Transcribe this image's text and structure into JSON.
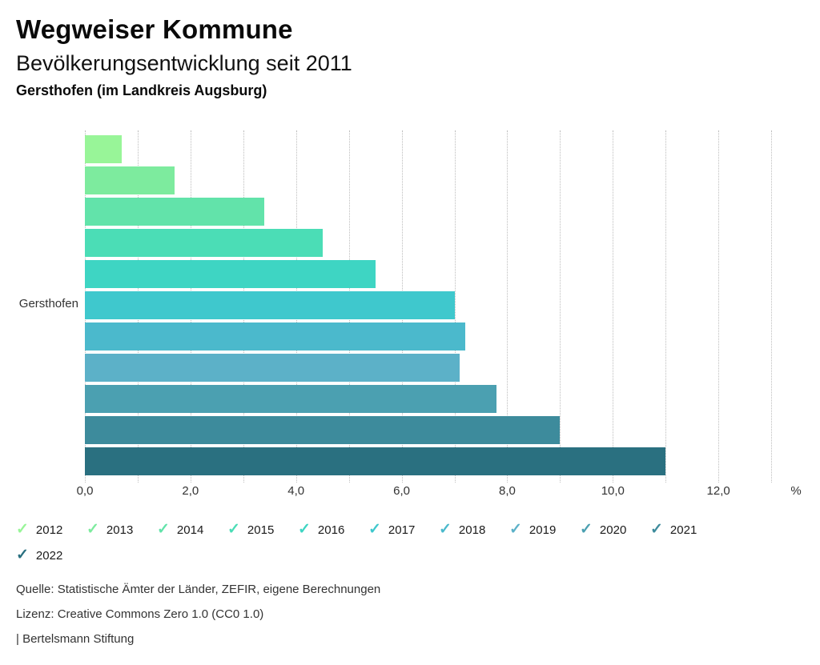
{
  "header": {
    "title": "Wegweiser Kommune",
    "subtitle": "Bevölkerungsentwicklung seit 2011",
    "region": "Gersthofen (im Landkreis Augsburg)"
  },
  "chart_data": {
    "type": "bar",
    "orientation": "horizontal",
    "title": "Bevölkerungsentwicklung seit 2011",
    "category_label": "Gersthofen",
    "unit_label": "%",
    "xlim": [
      0,
      13
    ],
    "grid": "dotted-vertical-every-1",
    "legend_position": "bottom",
    "x_ticks": [
      {
        "label": "0,0",
        "value": 0
      },
      {
        "label": "2,0",
        "value": 2
      },
      {
        "label": "4,0",
        "value": 4
      },
      {
        "label": "6,0",
        "value": 6
      },
      {
        "label": "8,0",
        "value": 8
      },
      {
        "label": "10,0",
        "value": 10
      },
      {
        "label": "12,0",
        "value": 12
      }
    ],
    "series": [
      {
        "name": "2012",
        "value": 0.7,
        "color": "#98F598"
      },
      {
        "name": "2013",
        "value": 1.7,
        "color": "#7DEB9E"
      },
      {
        "name": "2014",
        "value": 3.4,
        "color": "#62E3AA"
      },
      {
        "name": "2015",
        "value": 4.5,
        "color": "#4BDDB6"
      },
      {
        "name": "2016",
        "value": 5.5,
        "color": "#3ED5C3"
      },
      {
        "name": "2017",
        "value": 7.0,
        "color": "#3FC8CD"
      },
      {
        "name": "2018",
        "value": 7.2,
        "color": "#4BB9CC"
      },
      {
        "name": "2019",
        "value": 7.1,
        "color": "#5CB1C8"
      },
      {
        "name": "2020",
        "value": 7.8,
        "color": "#4BA0B1"
      },
      {
        "name": "2021",
        "value": 9.0,
        "color": "#3D8B9C"
      },
      {
        "name": "2022",
        "value": 11.0,
        "color": "#2A7080"
      }
    ]
  },
  "legend": {
    "check_icon": "✓"
  },
  "footer": {
    "source": "Quelle: Statistische Ämter der Länder, ZEFIR, eigene Berechnungen",
    "license": "Lizenz: Creative Commons Zero 1.0 (CC0 1.0)",
    "attribution": "| Bertelsmann Stiftung"
  }
}
